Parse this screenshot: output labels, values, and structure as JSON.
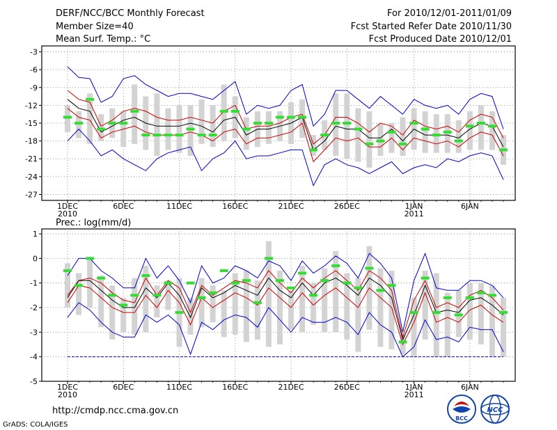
{
  "header": {
    "title": "DERF/NCC/BCC Monthly Forecast",
    "member_size": "Member Size=40",
    "variable_1": "Mean Surf. Temp.: °C",
    "period": "For 2010/12/01-2011/01/09",
    "started": "Fcst Started Refer Date 2010/11/30",
    "produced": "Fcst Produced Date 2010/12/01"
  },
  "footer": {
    "url": "http://cmdp.ncc.cma.gov.cn",
    "grads": "GrADS: COLA/IGES",
    "logo_left": "BCC",
    "logo_right": "NCC"
  },
  "colors": {
    "envelope": "#0000cc",
    "spread": "#cc0000",
    "mean": "#000000",
    "box": "#d3d3d3",
    "obs": "#33dd33",
    "climo": "#0000aa"
  },
  "chart_data": [
    {
      "type": "line",
      "title": "Mean Surf. Temp.: °C",
      "ylim": [
        -28,
        -2
      ],
      "yticks": [
        -3,
        -6,
        -9,
        -12,
        -15,
        -18,
        -21,
        -24,
        -27
      ],
      "x_tick_labels": [
        {
          "day": 1,
          "label": "1DEC",
          "sub": "2010"
        },
        {
          "day": 6,
          "label": "6DEC"
        },
        {
          "day": 11,
          "label": "11DEC"
        },
        {
          "day": 16,
          "label": "16DEC"
        },
        {
          "day": 21,
          "label": "21DEC"
        },
        {
          "day": 26,
          "label": "26DEC"
        },
        {
          "day": 32,
          "label": "1JAN",
          "sub": "2011"
        },
        {
          "day": 37,
          "label": "6JAN"
        }
      ],
      "series": [
        {
          "name": "max",
          "values": [
            -5.5,
            -7.3,
            -7.5,
            -11.5,
            -10.5,
            -7.5,
            -7,
            -8.5,
            -9.5,
            -10.5,
            -10,
            -10,
            -10.5,
            -11,
            -9.5,
            -8,
            -13.5,
            -12,
            -12.5,
            -12,
            -9.5,
            -8.5,
            -15.5,
            -13.5,
            -9.5,
            -9.5,
            -11,
            -12.5,
            -10.5,
            -12,
            -13.5,
            -11,
            -12,
            -12.5,
            -12,
            -13.5,
            -11,
            -10,
            -10.5,
            -16
          ]
        },
        {
          "name": "upper",
          "values": [
            -9.5,
            -11,
            -11.5,
            -15.5,
            -14.5,
            -13,
            -12.5,
            -13,
            -14,
            -14.5,
            -14.5,
            -14,
            -14.5,
            -15,
            -13,
            -12,
            -16,
            -15.5,
            -15.5,
            -15,
            -14,
            -13.5,
            -18.5,
            -17,
            -14,
            -14,
            -15,
            -16.5,
            -15,
            -15.5,
            -17,
            -14.5,
            -15.5,
            -16,
            -15.5,
            -16.5,
            -14.5,
            -13.5,
            -14,
            -17.5
          ]
        },
        {
          "name": "mean",
          "values": [
            -11,
            -12.5,
            -13,
            -16.5,
            -15.5,
            -14.5,
            -14,
            -15,
            -15.5,
            -15.5,
            -15.5,
            -15,
            -15.5,
            -16.5,
            -14.5,
            -14,
            -17,
            -16,
            -16,
            -15.5,
            -15,
            -14,
            -19.5,
            -18,
            -15.5,
            -16,
            -16,
            -17.5,
            -17.5,
            -16,
            -18,
            -16,
            -17,
            -17,
            -17,
            -17.5,
            -16,
            -15,
            -15.5,
            -19
          ]
        },
        {
          "name": "lower",
          "values": [
            -12.5,
            -14,
            -14.5,
            -17.5,
            -16.5,
            -16,
            -15.5,
            -16.5,
            -17,
            -17,
            -17,
            -16.5,
            -17,
            -18,
            -16.5,
            -16,
            -18.5,
            -17.5,
            -17.5,
            -17,
            -16.5,
            -15,
            -21.5,
            -19.5,
            -17.5,
            -18,
            -17.5,
            -19,
            -19,
            -17.5,
            -19.5,
            -17.5,
            -18,
            -18.5,
            -18,
            -19,
            -17.5,
            -16.5,
            -17,
            -20.5
          ]
        },
        {
          "name": "min",
          "values": [
            -18,
            -16,
            -18,
            -20.5,
            -19.5,
            -21,
            -22,
            -23,
            -21,
            -20,
            -19.5,
            -19,
            -23,
            -21,
            -20,
            -18,
            -21,
            -20.5,
            -20.5,
            -20,
            -19.5,
            -19.5,
            -25.5,
            -22,
            -21,
            -22,
            -22.5,
            -23.5,
            -22.5,
            -21.5,
            -23.5,
            -22.5,
            -22,
            -22.5,
            -21,
            -21.5,
            -20.5,
            -20,
            -20.5,
            -24.5
          ]
        }
      ],
      "boxes": [
        [
          -12,
          -16.5
        ],
        [
          -13,
          -17.5
        ],
        [
          -10,
          -18.5
        ],
        [
          -13.5,
          -18
        ],
        [
          -12.5,
          -17.5
        ],
        [
          -13,
          -19
        ],
        [
          -8.5,
          -18.5
        ],
        [
          -10.5,
          -19.5
        ],
        [
          -10,
          -20.5
        ],
        [
          -12.5,
          -19.5
        ],
        [
          -12,
          -20
        ],
        [
          -12,
          -20.5
        ],
        [
          -11,
          -18.5
        ],
        [
          -12,
          -19
        ],
        [
          -8.5,
          -18
        ],
        [
          -10.5,
          -17.5
        ],
        [
          -14,
          -19.5
        ],
        [
          -13,
          -19
        ],
        [
          -13,
          -18.5
        ],
        [
          -13,
          -18
        ],
        [
          -11.5,
          -18.5
        ],
        [
          -11,
          -17.5
        ],
        [
          -17,
          -20.5
        ],
        [
          -14.5,
          -19.5
        ],
        [
          -10,
          -20.5
        ],
        [
          -10,
          -21
        ],
        [
          -12.5,
          -21.5
        ],
        [
          -13,
          -22.5
        ],
        [
          -15,
          -20.5
        ],
        [
          -15,
          -20
        ],
        [
          -14,
          -20.5
        ],
        [
          -12.5,
          -19.5
        ],
        [
          -13,
          -20
        ],
        [
          -13.5,
          -20
        ],
        [
          -13.5,
          -20
        ],
        [
          -14.5,
          -20
        ],
        [
          -13,
          -19.5
        ],
        [
          -12,
          -19.5
        ],
        [
          -13,
          -19.5
        ],
        [
          -17,
          -22
        ]
      ],
      "obs": [
        -14,
        -15,
        -11,
        -16,
        -15,
        -15,
        -13,
        -17,
        -17,
        -17,
        -17,
        -16,
        -17,
        -17,
        -13,
        -13,
        -16,
        -15,
        -15,
        -14,
        -14,
        -14,
        -19.5,
        -17,
        -15,
        -15,
        -16,
        -18.5,
        -18,
        -16.5,
        -18.5,
        -15,
        -16,
        -17,
        -16.5,
        -18,
        -15.5,
        -15,
        -15.5,
        -19.5
      ]
    },
    {
      "type": "line",
      "title": "Prec.: log(mm/d)",
      "ylim": [
        -5,
        1.2
      ],
      "yticks": [
        1,
        0,
        -1,
        -2,
        -3,
        -4,
        -5
      ],
      "x_tick_labels": [
        {
          "day": 1,
          "label": "1DEC",
          "sub": "2010"
        },
        {
          "day": 6,
          "label": "6DEC"
        },
        {
          "day": 11,
          "label": "11DEC"
        },
        {
          "day": 16,
          "label": "16DEC"
        },
        {
          "day": 21,
          "label": "21DEC"
        },
        {
          "day": 26,
          "label": "26DEC"
        },
        {
          "day": 32,
          "label": "1JAN",
          "sub": "2011"
        },
        {
          "day": 37,
          "label": "6JAN"
        }
      ],
      "series": [
        {
          "name": "max",
          "values": [
            -0.7,
            0,
            0,
            -0.5,
            -0.8,
            -1.2,
            -1.2,
            0,
            -0.8,
            -0.3,
            -0.9,
            -1.8,
            -0.3,
            -1,
            -0.8,
            -0.3,
            -0.5,
            -0.8,
            -0.1,
            -0.3,
            -0.9,
            -0.1,
            -0.6,
            -0.3,
            0.1,
            -0.2,
            -0.8,
            0.2,
            -0.2,
            -0.8,
            -3,
            -0.9,
            0.2,
            -1.2,
            -1.3,
            -1.3,
            -0.9,
            -0.9,
            -1.1,
            -1.6
          ]
        },
        {
          "name": "upper",
          "values": [
            -1.5,
            -0.9,
            -0.8,
            -1,
            -1.4,
            -1.7,
            -1.8,
            -0.8,
            -1.5,
            -0.9,
            -1.2,
            -2.2,
            -1.1,
            -1.5,
            -1.2,
            -0.9,
            -1,
            -1.2,
            -0.5,
            -1,
            -1.4,
            -0.8,
            -1.2,
            -0.8,
            -0.5,
            -0.9,
            -1.3,
            -0.5,
            -0.8,
            -1.3,
            -3.2,
            -1.7,
            -0.9,
            -2,
            -1.8,
            -2,
            -1.5,
            -1.3,
            -1.6,
            -2.1
          ]
        },
        {
          "name": "mean",
          "values": [
            -1.6,
            -0.9,
            -0.9,
            -1.3,
            -1.7,
            -2,
            -2,
            -1.2,
            -1.6,
            -1,
            -1.5,
            -2.4,
            -1.2,
            -1.6,
            -1.4,
            -1.1,
            -1.3,
            -1.5,
            -0.8,
            -1.3,
            -1.6,
            -1,
            -1.5,
            -1,
            -0.8,
            -1.1,
            -1.5,
            -0.8,
            -1.1,
            -1.6,
            -3.3,
            -2.3,
            -1.1,
            -2.2,
            -2.1,
            -2.2,
            -1.7,
            -1.6,
            -1.9,
            -2.3
          ]
        },
        {
          "name": "lower",
          "values": [
            -1.8,
            -1.1,
            -1.2,
            -1.6,
            -2,
            -2.2,
            -2.2,
            -1.5,
            -2,
            -1.3,
            -1.8,
            -2.7,
            -1.6,
            -2,
            -1.7,
            -1.4,
            -1.6,
            -1.9,
            -1.2,
            -1.6,
            -2,
            -1.4,
            -1.9,
            -1.5,
            -1.2,
            -1.6,
            -2,
            -1.2,
            -1.6,
            -2,
            -3.5,
            -2.6,
            -1.4,
            -2.6,
            -2.4,
            -2.6,
            -2.1,
            -1.9,
            -2.3,
            -2.6
          ]
        },
        {
          "name": "min",
          "values": [
            -2.4,
            -1.8,
            -2.1,
            -2.6,
            -3,
            -3.2,
            -3.2,
            -2.3,
            -2.6,
            -2.3,
            -2.7,
            -3.9,
            -2.6,
            -2.9,
            -2.5,
            -2.3,
            -2.4,
            -2.8,
            -2,
            -2.5,
            -3,
            -2.4,
            -2.6,
            -2.6,
            -2.4,
            -2.6,
            -3.1,
            -2.2,
            -2.7,
            -3,
            -4,
            -3.6,
            -2.5,
            -3.3,
            -3.2,
            -3.4,
            -2.8,
            -2.9,
            -2.9,
            -3.8
          ]
        },
        {
          "name": "climatology",
          "values": [
            -4,
            -4,
            -4,
            -4,
            -4,
            -4,
            -4,
            -4,
            -4,
            -4,
            -4,
            -4,
            -4,
            -4,
            -4,
            -4,
            -4,
            -4,
            -4,
            -4,
            -4,
            -4,
            -4,
            -4,
            -4,
            -4,
            -4,
            -4,
            -4,
            -4,
            -4,
            -4,
            -4,
            -4,
            -4,
            -4,
            -4,
            -4,
            -4,
            -4
          ]
        }
      ],
      "boxes": [
        [
          -0.2,
          -2
        ],
        [
          -0.6,
          -2.3
        ],
        [
          0,
          -2
        ],
        [
          -0.7,
          -2.8
        ],
        [
          -1.1,
          -3.3
        ],
        [
          -1.6,
          -3
        ],
        [
          -0.8,
          -3.1
        ],
        [
          -0.3,
          -3
        ],
        [
          -1.1,
          -2.4
        ],
        [
          -0.9,
          -2.1
        ],
        [
          -0.8,
          -3.6
        ],
        [
          -1.6,
          -3.1
        ],
        [
          -0.8,
          -2.8
        ],
        [
          -1.1,
          -2.6
        ],
        [
          -1.3,
          -3.2
        ],
        [
          -0.6,
          -3.1
        ],
        [
          -0.5,
          -3.4
        ],
        [
          -0.9,
          -3.3
        ],
        [
          0.7,
          -3.6
        ],
        [
          -0.5,
          -3.5
        ],
        [
          -1.3,
          -2.9
        ],
        [
          -0.3,
          -3
        ],
        [
          -1,
          -2.7
        ],
        [
          -0.4,
          -3
        ],
        [
          0.3,
          -3
        ],
        [
          -0.6,
          -3.3
        ],
        [
          -0.8,
          -3.8
        ],
        [
          0.5,
          -2.9
        ],
        [
          -0.4,
          -3.6
        ],
        [
          -0.5,
          -3.7
        ],
        [
          -3.1,
          -3.9
        ],
        [
          -1.6,
          -4
        ],
        [
          -0.5,
          -3.3
        ],
        [
          -0.6,
          -4
        ],
        [
          -1.4,
          -4
        ],
        [
          -1.3,
          -3.2
        ],
        [
          -1,
          -3.3
        ],
        [
          -1,
          -3.5
        ],
        [
          -1.1,
          -4
        ],
        [
          -1.6,
          -4
        ]
      ],
      "obs": [
        -0.5,
        -1.1,
        0,
        -0.8,
        -1.5,
        -1.9,
        -1.5,
        -0.7,
        -1.5,
        -1,
        -2.2,
        -1,
        -1.6,
        -1.4,
        -0.5,
        -1,
        -0.9,
        -1.8,
        0,
        -0.9,
        -1.2,
        -0.6,
        -1.5,
        -0.9,
        -0.3,
        -1,
        -1.2,
        -0.4,
        -1.3,
        -1.1,
        -3.4,
        -2.2,
        -0.8,
        -2.2,
        -1.6,
        -2.3,
        -1.6,
        -1.4,
        -1.5,
        -2.2
      ]
    }
  ]
}
